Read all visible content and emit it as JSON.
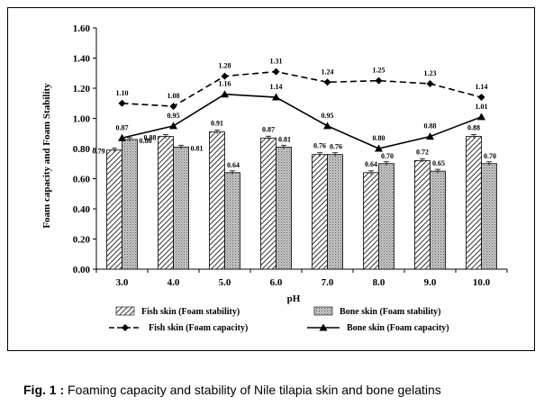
{
  "chart_data": {
    "type": "bar",
    "categories": [
      "3.0",
      "4.0",
      "5.0",
      "6.0",
      "7.0",
      "8.0",
      "9.0",
      "10.0"
    ],
    "xlabel": "pH",
    "ylabel": "Foam capacity and Foam Stability",
    "ylim": [
      0,
      1.6
    ],
    "yticks": [
      "0.00",
      "0.20",
      "0.40",
      "0.60",
      "0.80",
      "1.00",
      "1.20",
      "1.40",
      "1.60"
    ],
    "grid": false,
    "legend_position": "bottom",
    "bar_series": [
      {
        "name": "Fish skin (Foam stability)",
        "pattern": "diagonal-hatch",
        "values": [
          0.79,
          0.88,
          0.91,
          0.87,
          0.76,
          0.64,
          0.72,
          0.88
        ],
        "labels": [
          "0.79",
          "0.88",
          "0.91",
          "0.87",
          "0.76",
          "0.64",
          "0.72",
          "0.88"
        ]
      },
      {
        "name": "Bone skin (Foam stability)",
        "pattern": "dots",
        "values": [
          0.86,
          0.81,
          0.64,
          0.81,
          0.76,
          0.7,
          0.65,
          0.7
        ],
        "labels": [
          "0.86",
          "0.81",
          "0.64",
          "0.81",
          "0.76",
          "0.70",
          "0.65",
          "0.70"
        ]
      }
    ],
    "line_series": [
      {
        "name": "Fish skin (Foam capacity)",
        "style": "dashed",
        "marker": "diamond",
        "values": [
          1.1,
          1.08,
          1.28,
          1.31,
          1.24,
          1.25,
          1.23,
          1.14
        ],
        "labels": [
          "1.10",
          "1.08",
          "1.28",
          "1.31",
          "1.24",
          "1.25",
          "1.23",
          "1.14"
        ]
      },
      {
        "name": "Bone skin (Foam capacity)",
        "style": "solid",
        "marker": "triangle",
        "values": [
          0.87,
          0.95,
          1.16,
          1.14,
          0.95,
          0.8,
          0.88,
          1.01
        ],
        "labels": [
          "0.87",
          "0.95",
          "1.16",
          "1.14",
          "0.95",
          "0.80",
          "0.88",
          "1.01"
        ]
      }
    ]
  },
  "caption": {
    "label": "Fig. 1 :",
    "text": " Foaming capacity and stability of Nile tilapia skin and bone gelatins"
  }
}
